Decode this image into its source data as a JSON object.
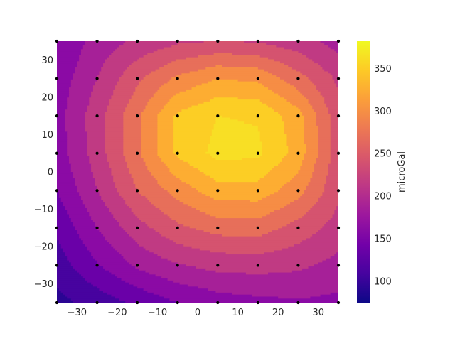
{
  "chart_data": {
    "type": "contour",
    "colormap": "plasma",
    "x": [
      -35,
      -25,
      -15,
      -5,
      5,
      15,
      25,
      35
    ],
    "y": [
      35,
      25,
      15,
      5,
      -5,
      -15,
      -25,
      -35
    ],
    "z": [
      [
        150,
        185,
        205,
        220,
        225,
        222,
        210,
        190
      ],
      [
        160,
        200,
        245,
        280,
        300,
        295,
        260,
        220
      ],
      [
        165,
        215,
        270,
        330,
        350,
        348,
        310,
        235
      ],
      [
        162,
        212,
        270,
        330,
        358,
        355,
        315,
        235
      ],
      [
        150,
        200,
        250,
        285,
        315,
        315,
        285,
        230
      ],
      [
        130,
        175,
        215,
        245,
        260,
        262,
        240,
        215
      ],
      [
        112,
        148,
        180,
        198,
        208,
        210,
        205,
        192
      ],
      [
        92,
        110,
        130,
        150,
        162,
        168,
        172,
        168
      ]
    ],
    "levels": [
      75,
      100,
      125,
      150,
      175,
      200,
      225,
      250,
      275,
      300,
      325,
      350,
      375
    ],
    "level_colors": [
      "#2a0593",
      "#47039f",
      "#6a00a8",
      "#8b0aa5",
      "#a62098",
      "#c03a83",
      "#d5536f",
      "#e76f5a",
      "#f68d45",
      "#fdad32",
      "#fcce25",
      "#f8df25"
    ],
    "xlim": [
      -35,
      35
    ],
    "ylim": [
      -35,
      35
    ],
    "xticks": [
      -30,
      -20,
      -10,
      0,
      10,
      20,
      30
    ],
    "yticks": [
      30,
      20,
      10,
      0,
      -10,
      -20,
      -30
    ],
    "colorbar": {
      "label": "microGal",
      "range": [
        75,
        382
      ],
      "ticks": [
        100,
        150,
        200,
        250,
        300,
        350
      ]
    },
    "markers": "black dots at grid points",
    "grid": false
  },
  "labels": {
    "xticks": [
      "−30",
      "−20",
      "−10",
      "0",
      "10",
      "20",
      "30"
    ],
    "yticks": [
      "30",
      "20",
      "10",
      "0",
      "−10",
      "−20",
      "−30"
    ],
    "cbar_ticks": [
      "100",
      "150",
      "200",
      "250",
      "300",
      "350"
    ],
    "cbar_label": "microGal"
  }
}
